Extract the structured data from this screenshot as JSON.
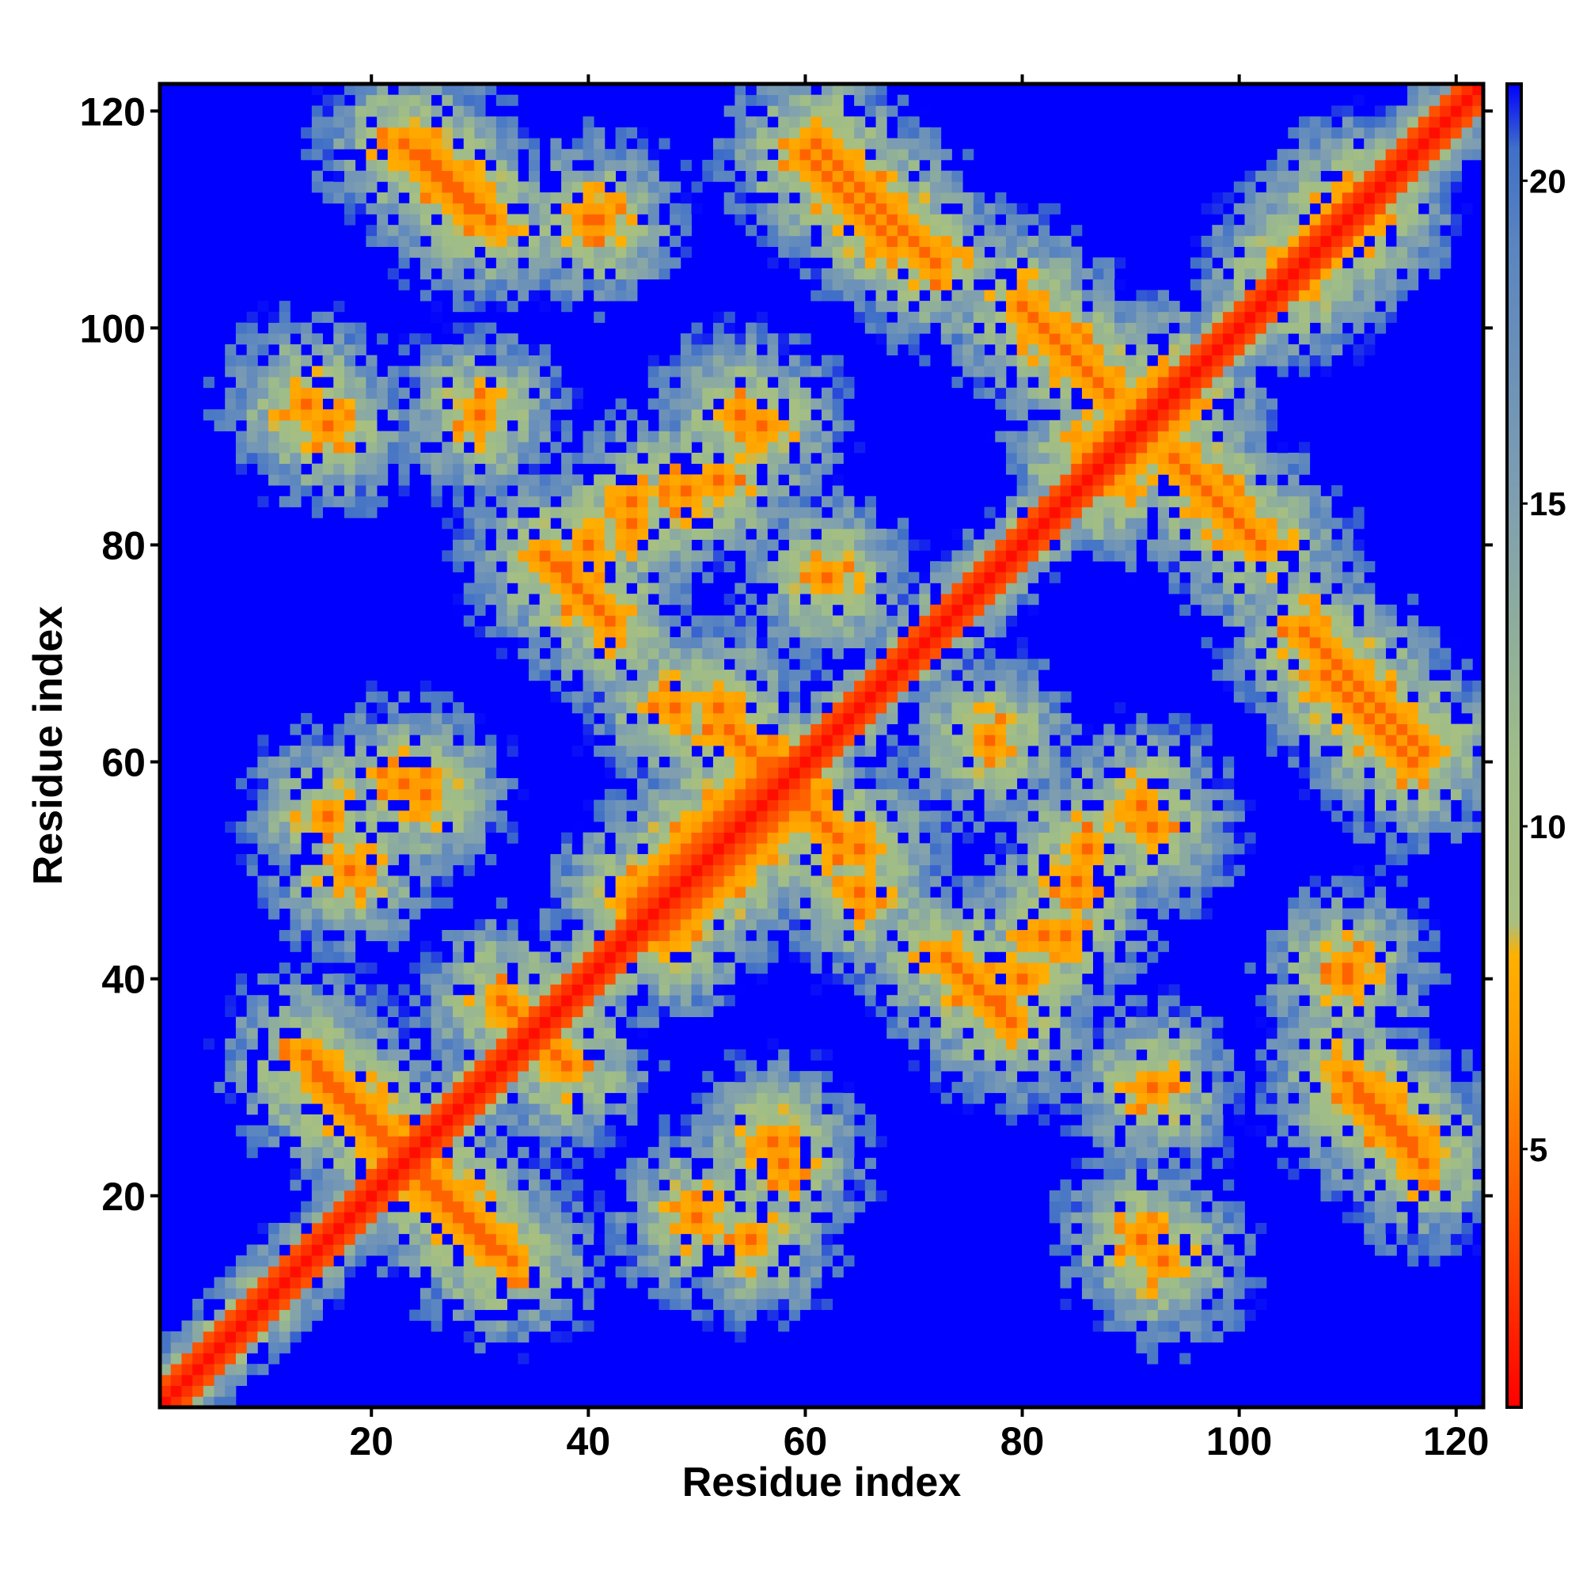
{
  "chart_data": {
    "type": "heatmap",
    "title": "",
    "xlabel": "Residue index",
    "ylabel": "Residue index",
    "n_residues": 122,
    "xlim": [
      0.5,
      122.5
    ],
    "ylim": [
      0.5,
      122.5
    ],
    "x_ticks": [
      20,
      40,
      60,
      80,
      100,
      120
    ],
    "y_ticks": [
      20,
      40,
      60,
      80,
      100,
      120
    ],
    "colorbar": {
      "range": [
        1,
        21.5
      ],
      "ticks": [
        5,
        10,
        15,
        20
      ],
      "stops": [
        {
          "value": 1,
          "color": "#ff0000"
        },
        {
          "value": 4,
          "color": "#ff5500"
        },
        {
          "value": 6.5,
          "color": "#ff9900"
        },
        {
          "value": 8,
          "color": "#ffb000"
        },
        {
          "value": 8.5,
          "color": "#a8bf80"
        },
        {
          "value": 11,
          "color": "#9fbd88"
        },
        {
          "value": 15,
          "color": "#7f9fb0"
        },
        {
          "value": 19,
          "color": "#5a85c0"
        },
        {
          "value": 20.5,
          "color": "#3f6fc8"
        },
        {
          "value": 21.5,
          "color": "#0000ff"
        }
      ],
      "cutoff_color": "#0000ff"
    },
    "colors": {
      "diagonal": "#ff0000",
      "background": "#0000ff"
    },
    "contact_features": {
      "description_values": "distance between residue i and residue j; values above cutoff drawn blue",
      "antiparallel_contacts": [
        {
          "i_start": 14,
          "j_start": 33,
          "length": 9
        },
        {
          "i_start": 25,
          "j_start": 21,
          "length": 7
        },
        {
          "i_start": 32,
          "j_start": 38,
          "length": 7
        },
        {
          "i_start": 25,
          "j_start": 116,
          "length": 7
        },
        {
          "i_start": 60,
          "j_start": 116,
          "length": 9
        },
        {
          "i_start": 82,
          "j_start": 100,
          "length": 7
        },
        {
          "i_start": 96,
          "j_start": 86,
          "length": 7
        },
        {
          "i_start": 106,
          "j_start": 72,
          "length": 12
        },
        {
          "i_start": 111,
          "j_start": 29,
          "length": 7
        },
        {
          "i_start": 53,
          "j_start": 63,
          "length": 6
        },
        {
          "i_start": 37,
          "j_start": 78,
          "length": 6
        }
      ],
      "parallel_contacts": [
        {
          "i_start": 44,
          "j_start": 47,
          "length": 14
        },
        {
          "i_start": 105,
          "j_start": 104,
          "length": 8
        },
        {
          "i_start": 86,
          "j_start": 88,
          "length": 8
        }
      ],
      "spot_contacts": [
        {
          "x": 14,
          "y": 93
        },
        {
          "x": 30,
          "y": 92
        },
        {
          "x": 41,
          "y": 110
        },
        {
          "x": 36,
          "y": 79
        },
        {
          "x": 44,
          "y": 84
        },
        {
          "x": 49,
          "y": 85
        },
        {
          "x": 54,
          "y": 92
        },
        {
          "x": 52,
          "y": 65
        },
        {
          "x": 62,
          "y": 77
        },
        {
          "x": 78,
          "y": 38
        },
        {
          "x": 80,
          "y": 40
        },
        {
          "x": 82,
          "y": 44
        },
        {
          "x": 86,
          "y": 52
        },
        {
          "x": 91,
          "y": 56
        },
        {
          "x": 110,
          "y": 40
        },
        {
          "x": 91,
          "y": 16
        },
        {
          "x": 50,
          "y": 18
        },
        {
          "x": 57,
          "y": 25
        },
        {
          "x": 16,
          "y": 55
        },
        {
          "x": 23,
          "y": 58
        },
        {
          "x": 65,
          "y": 48
        }
      ]
    }
  }
}
